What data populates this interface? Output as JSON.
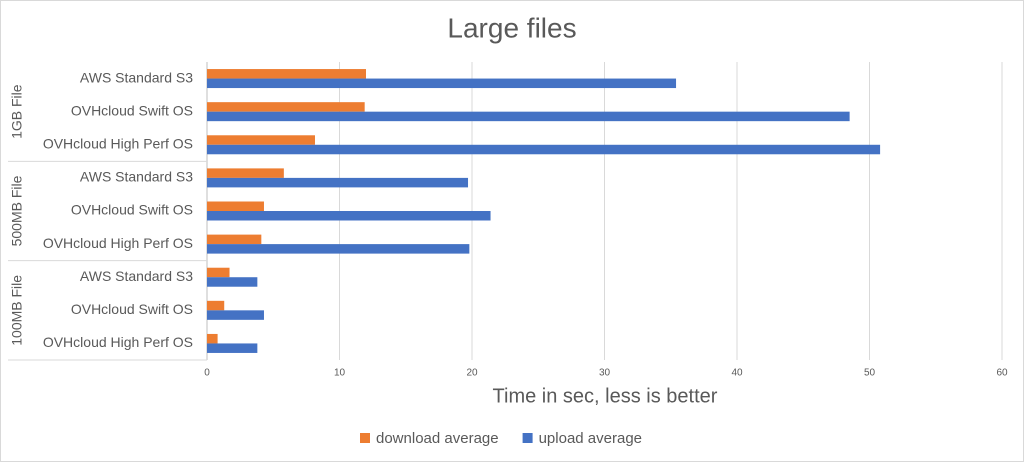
{
  "chart_data": {
    "type": "hbar",
    "title": "Large files",
    "x_label": "Time in sec, less is better",
    "groups": [
      {
        "name": "1GB File",
        "categories": [
          "AWS Standard S3",
          "OVHcloud Swift OS",
          "OVHcloud High Perf OS"
        ]
      },
      {
        "name": "500MB File",
        "categories": [
          "AWS Standard S3",
          "OVHcloud Swift OS",
          "OVHcloud High Perf OS"
        ]
      },
      {
        "name": "100MB File",
        "categories": [
          "AWS Standard S3",
          "OVHcloud Swift OS",
          "OVHcloud High Perf OS"
        ]
      }
    ],
    "series": [
      {
        "name": "download average",
        "color": "#ed7d31",
        "values": [
          12.0,
          11.9,
          8.15,
          5.8,
          4.3,
          4.1,
          1.7,
          1.3,
          0.8
        ]
      },
      {
        "name": "upload average",
        "color": "#4472c4",
        "values": [
          35.4,
          48.5,
          50.8,
          19.7,
          21.4,
          19.8,
          3.8,
          4.3,
          3.8
        ]
      }
    ],
    "xlim": [
      0,
      60
    ],
    "xticks": [
      0,
      10,
      20,
      30,
      40,
      50,
      60
    ],
    "grid": true,
    "legend": "bottom"
  }
}
